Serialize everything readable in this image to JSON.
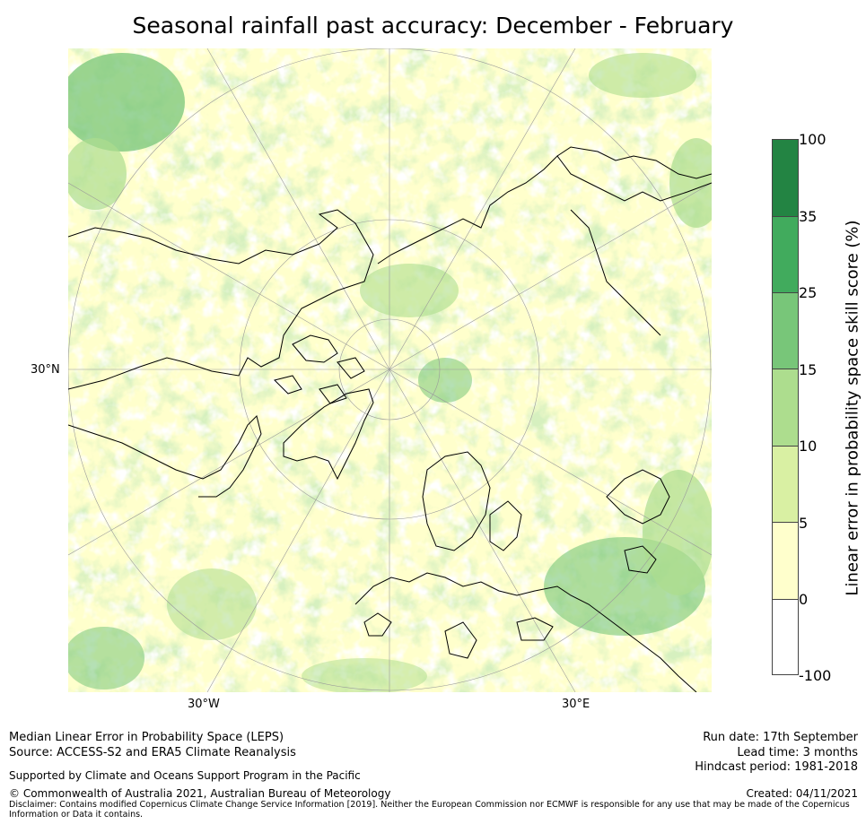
{
  "title": "Seasonal rainfall past accuracy: December - February",
  "map": {
    "projection": "north-polar-stereographic",
    "lat_label": "30°N",
    "lon_labels": [
      "30°W",
      "30°E"
    ]
  },
  "colorbar": {
    "label": "Linear error in probability space skill score (%)",
    "bounds": [
      "-100",
      "0",
      "5",
      "10",
      "15",
      "25",
      "35",
      "100"
    ],
    "colors": [
      "#ffffff",
      "#ffffcc",
      "#d9f0a3",
      "#addd8e",
      "#78c679",
      "#41ab5d",
      "#238443"
    ]
  },
  "footer": {
    "line1": "Median Linear Error in Probability Space (LEPS)",
    "line2": "Source: ACCESS-S2 and ERA5 Climate Reanalysis",
    "support": "Supported by Climate and Oceans Support Program in the Pacific",
    "copyright": "© Commonwealth of Australia 2021, Australian Bureau of Meteorology",
    "disclaimer1": "Disclaimer: Contains modified Copernicus Climate Change Service Information [2019]. Neither the European Commission nor ECMWF is responsible for any use that may be made of the Copernicus",
    "disclaimer2": "Information or Data it contains.",
    "run_date": "Run date: 17th September",
    "lead_time": "Lead time: 3 months",
    "hindcast": "Hindcast period: 1981-2018",
    "created": "Created: 04/11/2021"
  }
}
